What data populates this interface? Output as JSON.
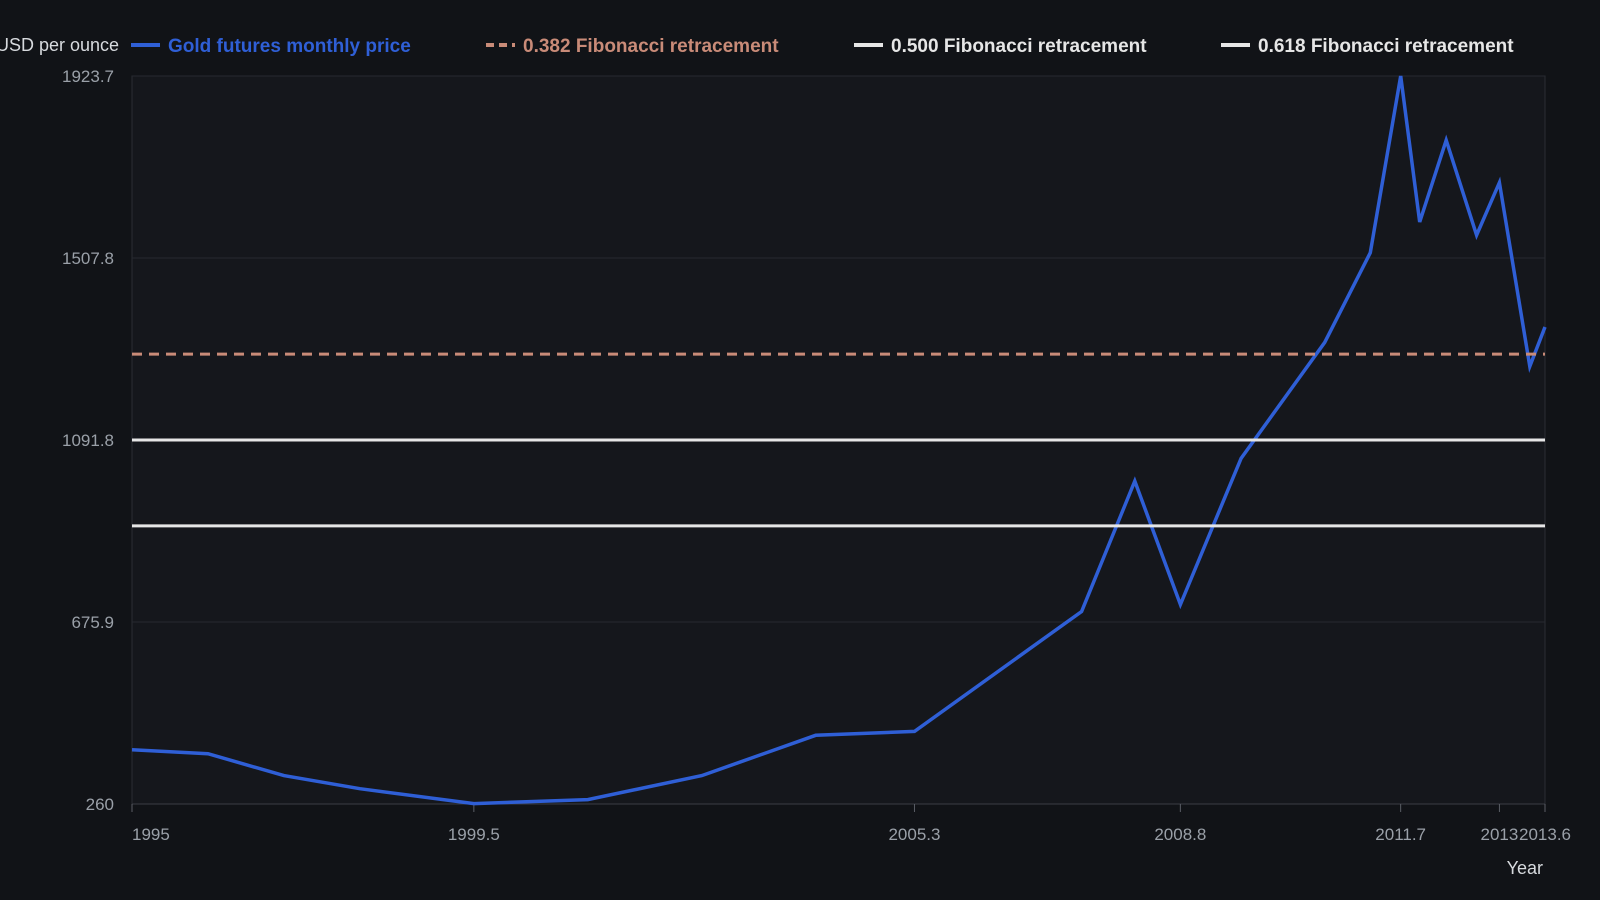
{
  "chart_data": {
    "type": "line",
    "xlabel": "Year",
    "ylabel": "USD per ounce",
    "xlim": [
      1995,
      2013.6
    ],
    "ylim": [
      260,
      1923.7
    ],
    "x_ticks": [
      1995,
      1999.5,
      2005.3,
      2008.8,
      2011.7,
      2013,
      2013.6
    ],
    "x_tick_labels": [
      "1995",
      "1999.5",
      "2005.3",
      "2008.8",
      "2011.7",
      "2013",
      "2013.6"
    ],
    "y_ticks": [
      260,
      675.9,
      1091.8,
      1507.8,
      1923.7
    ],
    "y_tick_labels": [
      "260",
      "675.9",
      "1091.8",
      "1507.8",
      "1923.7"
    ],
    "grid": "horizontal",
    "legend_position": "top",
    "series": [
      {
        "name": "Gold futures monthly price",
        "color": "#2f5fd6",
        "style": "solid",
        "x": [
          1995,
          1996,
          1997,
          1998,
          1999.5,
          2001,
          2002.5,
          2004,
          2005.3,
          2007.5,
          2008.2,
          2008.8,
          2009.6,
          2010.7,
          2011.3,
          2011.7,
          2011.95,
          2012.3,
          2012.7,
          2013,
          2013.4,
          2013.6
        ],
        "y": [
          384,
          375,
          325,
          295,
          261,
          270,
          325,
          417,
          426,
          700,
          998,
          716,
          1050,
          1315,
          1520,
          1923.7,
          1590,
          1777,
          1560,
          1680,
          1260,
          1350
        ]
      },
      {
        "name": "0.382 Fibonacci retracement",
        "color": "#c98b78",
        "style": "dashed",
        "x": [
          1995,
          2013.6
        ],
        "y": [
          1288.1,
          1288.1
        ]
      },
      {
        "name": "0.500 Fibonacci retracement",
        "color": "#e6e6e6",
        "style": "solid",
        "x": [
          1995,
          2013.6
        ],
        "y": [
          1091.8,
          1091.8
        ]
      },
      {
        "name": "0.618 Fibonacci retracement",
        "color": "#e6e6e6",
        "style": "solid",
        "x": [
          1995,
          2013.6
        ],
        "y": [
          895.5,
          895.5
        ]
      }
    ]
  }
}
